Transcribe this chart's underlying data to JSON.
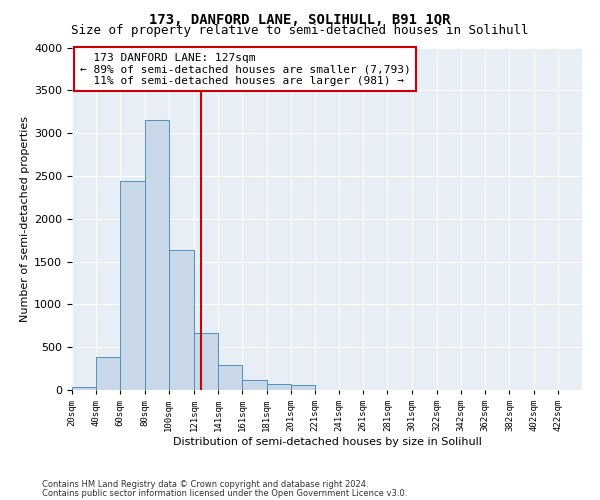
{
  "title": "173, DANFORD LANE, SOLIHULL, B91 1QR",
  "subtitle": "Size of property relative to semi-detached houses in Solihull",
  "xlabel": "Distribution of semi-detached houses by size in Solihull",
  "ylabel": "Number of semi-detached properties",
  "footer_line1": "Contains HM Land Registry data © Crown copyright and database right 2024.",
  "footer_line2": "Contains public sector information licensed under the Open Government Licence v3.0.",
  "bin_labels": [
    "20sqm",
    "40sqm",
    "60sqm",
    "80sqm",
    "100sqm",
    "121sqm",
    "141sqm",
    "161sqm",
    "181sqm",
    "201sqm",
    "221sqm",
    "241sqm",
    "261sqm",
    "281sqm",
    "301sqm",
    "322sqm",
    "342sqm",
    "362sqm",
    "382sqm",
    "402sqm",
    "422sqm"
  ],
  "bin_edges": [
    20,
    40,
    60,
    80,
    100,
    121,
    141,
    161,
    181,
    201,
    221,
    241,
    261,
    281,
    301,
    322,
    342,
    362,
    382,
    402,
    422,
    442
  ],
  "bar_values": [
    30,
    390,
    2440,
    3150,
    1640,
    670,
    290,
    115,
    65,
    55,
    0,
    0,
    0,
    0,
    0,
    0,
    0,
    0,
    0,
    0,
    0
  ],
  "bar_color": "#c8d8e8",
  "bar_edge_color": "#5090c0",
  "property_size": 127,
  "property_label": "173 DANFORD LANE: 127sqm",
  "pct_smaller": 89,
  "n_smaller": 7793,
  "pct_larger": 11,
  "n_larger": 981,
  "vline_color": "#cc0000",
  "annotation_box_color": "#cc0000",
  "ylim": [
    0,
    4000
  ],
  "yticks": [
    0,
    500,
    1000,
    1500,
    2000,
    2500,
    3000,
    3500,
    4000
  ],
  "bg_color": "#e8eef5",
  "title_fontsize": 10,
  "subtitle_fontsize": 9,
  "annotation_fontsize": 8,
  "xlabel_fontsize": 8,
  "ylabel_fontsize": 8,
  "footer_fontsize": 6
}
